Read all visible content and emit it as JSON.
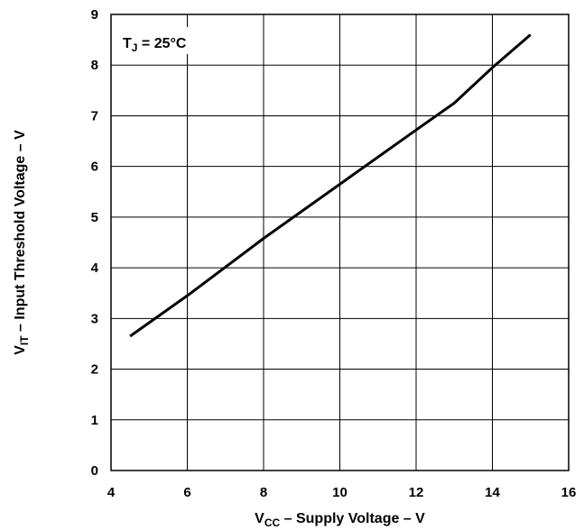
{
  "chart_data": {
    "type": "line",
    "annotation": {
      "main": "T",
      "sub": "J",
      "rest": " = 25°C"
    },
    "xlabel": {
      "main": "V",
      "sub": "CC",
      "rest": " – Supply Voltage – V"
    },
    "ylabel": {
      "main": "V",
      "sub": "IT",
      "rest": "  – Input Threshold Voltage – V"
    },
    "xlim": [
      4,
      16
    ],
    "ylim": [
      0,
      9
    ],
    "x_ticks": [
      4,
      6,
      8,
      10,
      12,
      14,
      16
    ],
    "y_ticks": [
      0,
      1,
      2,
      3,
      4,
      5,
      6,
      7,
      8,
      9
    ],
    "grid": true,
    "series": [
      {
        "x": [
          4.5,
          6.0,
          8.0,
          10.0,
          12.0,
          13.0,
          14.0,
          15.0
        ],
        "y": [
          2.65,
          3.45,
          4.58,
          5.65,
          6.72,
          7.25,
          7.95,
          8.6
        ]
      }
    ]
  }
}
